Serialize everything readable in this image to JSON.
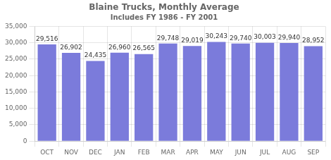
{
  "chart_data": {
    "type": "bar",
    "title": "Blaine Trucks, Monthly Average",
    "subtitle": "Includes FY 1986 - FY 2001",
    "categories": [
      "OCT",
      "NOV",
      "DEC",
      "JAN",
      "FEB",
      "MAR",
      "APR",
      "MAY",
      "JUN",
      "JUL",
      "AUG",
      "SEP"
    ],
    "values": [
      29516,
      26902,
      24435,
      26960,
      26565,
      29748,
      29019,
      30243,
      29740,
      30003,
      29940,
      28952
    ],
    "value_labels": [
      "29,516",
      "26,902",
      "24,435",
      "26,960",
      "26,565",
      "29,748",
      "29,019",
      "30,243",
      "29,740",
      "30,003",
      "29,940",
      "28,952"
    ],
    "data_labels": true,
    "color": "#7b7bdb",
    "ylim": [
      0,
      35000
    ],
    "yticks": [
      0,
      {
        "value": 5000,
        "label": "5,000"
      },
      {
        "value": 10000,
        "label": "10,000"
      },
      {
        "value": 15000,
        "label": "15,000"
      },
      {
        "value": 20000,
        "label": "20,000"
      },
      {
        "value": 25000,
        "label": "25,000"
      },
      {
        "value": 30000,
        "label": "30,000"
      },
      {
        "value": 35000,
        "label": "35,000"
      }
    ],
    "grid": true
  }
}
